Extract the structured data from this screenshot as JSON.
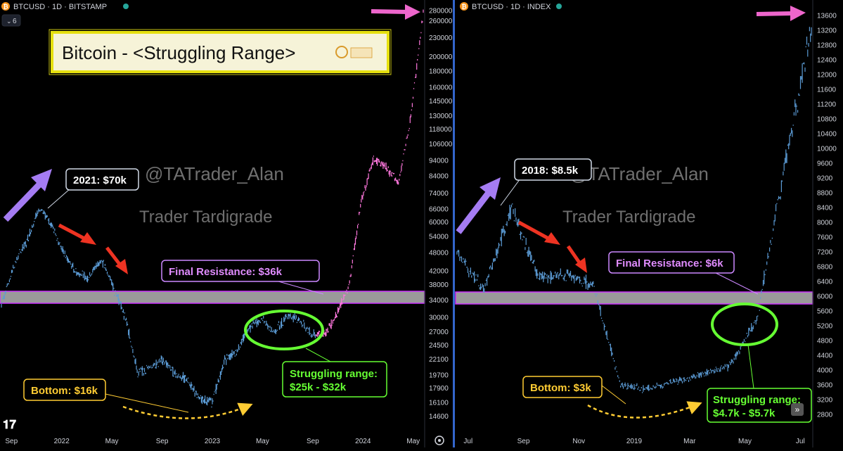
{
  "left_panel": {
    "symbol": "BTCUSD · 1D · BITSTAMP",
    "symbol_icon": "bitcoin-icon",
    "collapse_count": "6",
    "logo_label": "TradingView logo",
    "title": "Bitcoin - <Struggling Range>",
    "watermark_handle": "@TATrader_Alan",
    "watermark_name": "Trader Tardigrade",
    "callouts": {
      "peak": "2021: $70k",
      "resistance": "Final Resistance: $36k",
      "bottom": "Bottom: $16k",
      "range_line1": "Struggling range:",
      "range_line2": "$25k - $32k"
    }
  },
  "right_panel": {
    "symbol": "BTCUSD · 1D · INDEX",
    "symbol_icon": "bitcoin-icon",
    "watermark_handle": "@TATrader_Alan",
    "watermark_name": "Trader Tardigrade",
    "callouts": {
      "peak": "2018: $8.5k",
      "resistance": "Final Resistance: $6k",
      "bottom": "Bottom: $3k",
      "range_line1": "Struggling range:",
      "range_line2": "$4.7k - $5.7k"
    },
    "scroll_button": "»"
  },
  "colors": {
    "background": "#000000",
    "candles_blue": "#5b9bd5",
    "candles_pink": "#ff77dd",
    "resistance_band": "#9a9a9a",
    "resistance_border": "#cc33ff",
    "circle_green": "#66ff33",
    "arrow_purple": "#a57cf3",
    "arrow_red": "#ee3322",
    "arrow_pink": "#ee66cc",
    "bottom_yellow": "#ffcc33",
    "title_border": "#e6e010",
    "panel_divider": "#3366cc"
  },
  "chart_data": [
    {
      "type": "line",
      "title": "Bitcoin - <Struggling Range>",
      "symbol": "BTCUSD · 1D · BITSTAMP",
      "x_tick_labels": [
        "Sep",
        "2022",
        "May",
        "Sep",
        "2023",
        "May",
        "Sep",
        "2024",
        "May"
      ],
      "y_tick_labels": [
        "260000",
        "230000",
        "200000",
        "180000",
        "160000",
        "145000",
        "130000",
        "118000",
        "106000",
        "94000",
        "84000",
        "74000",
        "66000",
        "60000",
        "54000",
        "48000",
        "42000",
        "38000",
        "34000",
        "30000",
        "27000",
        "24500",
        "22100",
        "19700",
        "17900",
        "16100",
        "14600"
      ],
      "y_top_label": "280000",
      "y_scale": "log",
      "ylim": [
        14000,
        285000
      ],
      "x": [
        "2021-08",
        "2021-09",
        "2021-10",
        "2021-11",
        "2021-12",
        "2022-01",
        "2022-02",
        "2022-03",
        "2022-04",
        "2022-05",
        "2022-06",
        "2022-07",
        "2022-08",
        "2022-09",
        "2022-10",
        "2022-11",
        "2022-12",
        "2023-01",
        "2023-02",
        "2023-03",
        "2023-04",
        "2023-05",
        "2023-06",
        "2023-07",
        "2023-08",
        "2023-09",
        "2023-10",
        "2023-11",
        "2023-12",
        "2024-01",
        "2024-02",
        "2024-03",
        "2024-04",
        "2024-05",
        "2024-06"
      ],
      "values": [
        33000,
        44000,
        52000,
        66000,
        60000,
        48000,
        42000,
        40000,
        46000,
        38000,
        30000,
        20000,
        21000,
        22000,
        20000,
        19000,
        16500,
        16300,
        22000,
        23500,
        28000,
        29500,
        27000,
        30500,
        29500,
        26500,
        26500,
        30500,
        37500,
        70000,
        95000,
        90000,
        80000,
        130000,
        280000
      ],
      "resistance": 36000,
      "struggling_range": [
        25000,
        32000
      ],
      "bottom": 16000,
      "peak": 70000
    },
    {
      "type": "line",
      "symbol": "BTCUSD · 1D · INDEX",
      "x_tick_labels": [
        "Jul",
        "Sep",
        "Nov",
        "2019",
        "Mar",
        "May",
        "Jul"
      ],
      "y_tick_labels": [
        "13600",
        "13200",
        "12800",
        "12400",
        "12000",
        "11600",
        "11200",
        "10800",
        "10400",
        "10000",
        "9600",
        "9200",
        "8800",
        "8400",
        "8000",
        "7600",
        "7200",
        "6800",
        "6400",
        "6000",
        "5600",
        "5200",
        "4800",
        "4400",
        "4000",
        "3600",
        "3200",
        "2800"
      ],
      "y_scale": "linear",
      "ylim": [
        2600,
        13800
      ],
      "x": [
        "2018-06",
        "2018-07",
        "2018-08",
        "2018-09",
        "2018-10",
        "2018-11",
        "2018-12",
        "2019-01",
        "2019-02",
        "2019-03",
        "2019-04",
        "2019-05",
        "2019-06",
        "2019-07"
      ],
      "values": [
        7200,
        6200,
        8400,
        6500,
        6600,
        6300,
        3600,
        3500,
        3700,
        3900,
        4100,
        5400,
        9500,
        13200
      ],
      "resistance": 6000,
      "struggling_range": [
        4700,
        5700
      ],
      "bottom": 3000,
      "peak": 8500
    }
  ]
}
